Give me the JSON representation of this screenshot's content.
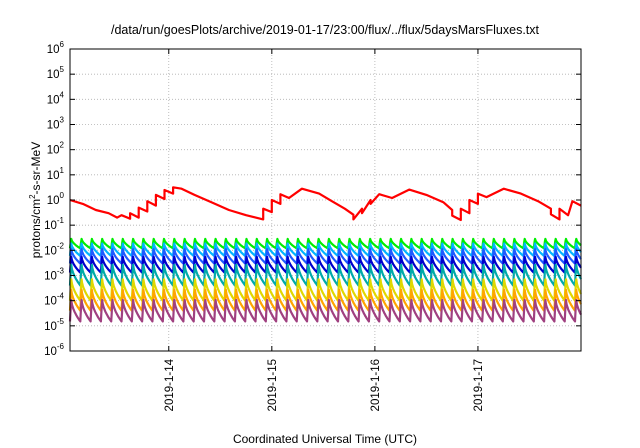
{
  "chart_data": {
    "type": "line",
    "title": "/data/run/goesPlots/archive/2019-01-17/23:00/flux/../flux/5daysMarsFluxes.txt",
    "xlabel": "Coordinated Universal Time (UTC)",
    "ylabel": {
      "base": "protons/cm",
      "exp": "2",
      "rest": "-s-sr-MeV"
    },
    "yscale": "log",
    "ylim": [
      1e-06,
      1000000.0
    ],
    "y_ticks": [
      {
        "base": "10",
        "exp": "-6"
      },
      {
        "base": "10",
        "exp": "-5"
      },
      {
        "base": "10",
        "exp": "-4"
      },
      {
        "base": "10",
        "exp": "-3"
      },
      {
        "base": "10",
        "exp": "-2"
      },
      {
        "base": "10",
        "exp": "-1"
      },
      {
        "base": "10",
        "exp": "0"
      },
      {
        "base": "10",
        "exp": "1"
      },
      {
        "base": "10",
        "exp": "2"
      },
      {
        "base": "10",
        "exp": "3"
      },
      {
        "base": "10",
        "exp": "4"
      },
      {
        "base": "10",
        "exp": "5"
      },
      {
        "base": "10",
        "exp": "6"
      }
    ],
    "xlim": [
      "2019-01-13 01:00",
      "2019-01-18 00:00"
    ],
    "x_ticks": [
      "2019-1-14",
      "2019-1-15",
      "2019-1-16",
      "2019-1-17"
    ],
    "grid": true,
    "series": [
      {
        "color": "#ff0000",
        "x": [
          "2019-01-13 01:00",
          "2019-01-13 04:00",
          "2019-01-13 07:00",
          "2019-01-13 10:00",
          "2019-01-13 12:00",
          "2019-01-13 13:00",
          "2019-01-13 15:00",
          "2019-01-13 15:00",
          "2019-01-13 17:00",
          "2019-01-13 17:00",
          "2019-01-13 19:00",
          "2019-01-13 19:00",
          "2019-01-13 21:00",
          "2019-01-13 21:00",
          "2019-01-13 23:00",
          "2019-01-13 23:00",
          "2019-01-14 01:00",
          "2019-01-14 01:00",
          "2019-01-14 03:00",
          "2019-01-14 06:00",
          "2019-01-14 10:00",
          "2019-01-14 14:00",
          "2019-01-14 18:00",
          "2019-01-14 22:00",
          "2019-01-14 22:00",
          "2019-01-15 00:00",
          "2019-01-15 00:00",
          "2019-01-15 02:00",
          "2019-01-15 02:00",
          "2019-01-15 04:00",
          "2019-01-15 07:00",
          "2019-01-15 11:00",
          "2019-01-15 14:00",
          "2019-01-15 17:00",
          "2019-01-15 19:00",
          "2019-01-15 19:00",
          "2019-01-15 21:00",
          "2019-01-15 21:00",
          "2019-01-15 23:00",
          "2019-01-15 23:00",
          "2019-01-16 01:00",
          "2019-01-16 04:00",
          "2019-01-16 08:00",
          "2019-01-16 12:00",
          "2019-01-16 16:00",
          "2019-01-16 18:00",
          "2019-01-16 18:00",
          "2019-01-16 20:00",
          "2019-01-16 20:00",
          "2019-01-16 22:00",
          "2019-01-16 22:00",
          "2019-01-17 00:00",
          "2019-01-17 00:00",
          "2019-01-17 02:00",
          "2019-01-17 06:00",
          "2019-01-17 10:00",
          "2019-01-17 14:00",
          "2019-01-17 17:00",
          "2019-01-17 17:00",
          "2019-01-17 19:00",
          "2019-01-17 19:00",
          "2019-01-17 21:00",
          "2019-01-17 22:00",
          "2019-01-18 00:00"
        ],
        "values": [
          1.0,
          0.7,
          0.4,
          0.3,
          0.2,
          0.25,
          0.18,
          0.3,
          0.2,
          0.5,
          0.35,
          0.9,
          0.6,
          1.6,
          1.1,
          2.5,
          1.8,
          3.2,
          2.8,
          1.6,
          0.8,
          0.4,
          0.25,
          0.17,
          0.45,
          0.33,
          1.0,
          0.7,
          1.7,
          1.2,
          2.8,
          1.8,
          0.9,
          0.45,
          0.26,
          0.17,
          0.45,
          0.3,
          1.0,
          0.7,
          1.7,
          1.2,
          2.6,
          1.6,
          0.8,
          0.4,
          0.24,
          0.16,
          0.45,
          0.3,
          1.0,
          0.7,
          1.8,
          1.3,
          2.8,
          1.8,
          0.9,
          0.45,
          0.27,
          0.17,
          0.45,
          0.25,
          0.9,
          0.6
        ]
      }
    ],
    "band_series": [
      {
        "color": "#00ee00",
        "high": 0.03,
        "low": 0.012,
        "period_h": 2.4
      },
      {
        "color": "#00b4ff",
        "high": 0.02,
        "low": 0.006,
        "period_h": 2.4
      },
      {
        "color": "#1e5aff",
        "high": 0.012,
        "low": 0.003,
        "period_h": 2.4
      },
      {
        "color": "#0000cd",
        "high": 0.006,
        "low": 0.0013,
        "period_h": 2.4
      },
      {
        "color": "#00aaaa",
        "high": 0.003,
        "low": 0.0004,
        "period_h": 2.4
      },
      {
        "color": "#e0d800",
        "high": 0.0008,
        "low": 0.0001,
        "period_h": 2.4
      },
      {
        "color": "#ffa500",
        "high": 0.0003,
        "low": 4e-05,
        "period_h": 2.4
      },
      {
        "color": "#a04080",
        "high": 0.00012,
        "low": 1.5e-05,
        "period_h": 2.4
      }
    ]
  }
}
